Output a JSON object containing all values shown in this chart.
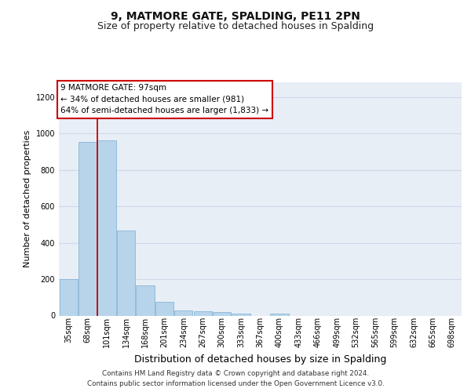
{
  "title1": "9, MATMORE GATE, SPALDING, PE11 2PN",
  "title2": "Size of property relative to detached houses in Spalding",
  "xlabel": "Distribution of detached houses by size in Spalding",
  "ylabel": "Number of detached properties",
  "categories": [
    "35sqm",
    "68sqm",
    "101sqm",
    "134sqm",
    "168sqm",
    "201sqm",
    "234sqm",
    "267sqm",
    "300sqm",
    "333sqm",
    "367sqm",
    "400sqm",
    "433sqm",
    "466sqm",
    "499sqm",
    "532sqm",
    "565sqm",
    "599sqm",
    "632sqm",
    "665sqm",
    "698sqm"
  ],
  "values": [
    200,
    955,
    960,
    465,
    165,
    75,
    28,
    22,
    18,
    10,
    0,
    12,
    0,
    0,
    0,
    0,
    0,
    0,
    0,
    0,
    0
  ],
  "bar_color": "#b8d4ea",
  "bar_edge_color": "#7aaed4",
  "vline_x_index": 2,
  "vline_color": "#cc0000",
  "annotation_text": "9 MATMORE GATE: 97sqm\n← 34% of detached houses are smaller (981)\n64% of semi-detached houses are larger (1,833) →",
  "annotation_box_facecolor": "#ffffff",
  "annotation_box_edgecolor": "#cc0000",
  "ylim": [
    0,
    1280
  ],
  "yticks": [
    0,
    200,
    400,
    600,
    800,
    1000,
    1200
  ],
  "footnote_line1": "Contains HM Land Registry data © Crown copyright and database right 2024.",
  "footnote_line2": "Contains public sector information licensed under the Open Government Licence v3.0.",
  "bg_color": "#e8eef6",
  "grid_color": "#d0d8e8",
  "title1_fontsize": 10,
  "title2_fontsize": 9,
  "ylabel_fontsize": 8,
  "xlabel_fontsize": 9,
  "tick_fontsize": 7,
  "ann_fontsize": 7.5
}
